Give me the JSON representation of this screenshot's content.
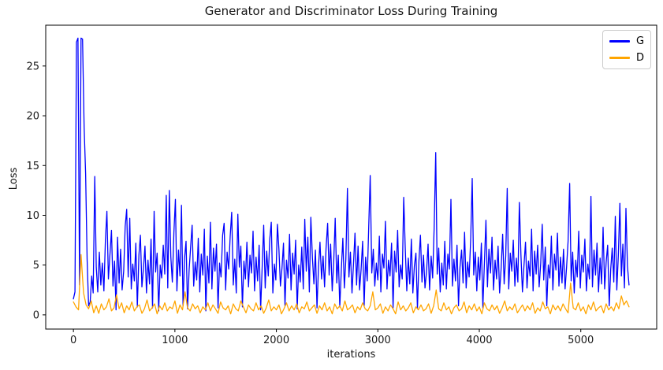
{
  "chart_data": {
    "type": "line",
    "title": "Generator and Discriminator Loss During Training",
    "xlabel": "iterations",
    "ylabel": "Loss",
    "xlim": [
      -273,
      5748
    ],
    "ylim": [
      -1.43,
      29.1
    ],
    "x_ticks": [
      0,
      1000,
      2000,
      3000,
      4000,
      5000
    ],
    "y_ticks": [
      0,
      5,
      10,
      15,
      20,
      25
    ],
    "grid": false,
    "legend_position": "upper right",
    "colors": {
      "generator": "#0000ff",
      "discriminator": "#ffa500",
      "axis": "#000000",
      "background": "#ffffff",
      "legend_border": "#cccccc"
    },
    "series": [
      {
        "name": "G",
        "color": "#0000ff",
        "x0": 0,
        "dx": 15,
        "values": [
          1.6,
          2.3,
          27.4,
          27.8,
          3.0,
          27.8,
          27.7,
          18.9,
          14.2,
          5.6,
          0.9,
          1.3,
          3.9,
          2.2,
          13.9,
          4.8,
          2.3,
          6.3,
          3.0,
          5.2,
          2.4,
          7.5,
          10.4,
          3.6,
          6.1,
          8.5,
          2.9,
          5.4,
          0.5,
          7.8,
          3.2,
          6.6,
          2.5,
          4.4,
          8.9,
          10.6,
          3.8,
          9.7,
          2.6,
          5.1,
          3.4,
          7.2,
          0.8,
          6.0,
          8.0,
          2.8,
          4.7,
          6.9,
          2.2,
          5.5,
          3.1,
          7.6,
          0.7,
          10.4,
          4.3,
          6.2,
          0.4,
          5.0,
          3.7,
          7.0,
          4.1,
          12.0,
          2.7,
          12.5,
          5.8,
          3.3,
          8.3,
          11.6,
          2.4,
          6.5,
          3.9,
          11.0,
          0.9,
          5.7,
          7.4,
          0.6,
          4.5,
          6.8,
          9.0,
          2.9,
          5.3,
          3.5,
          7.7,
          2.3,
          6.1,
          4.0,
          8.6,
          0.4,
          5.9,
          3.2,
          9.3,
          2.6,
          6.7,
          4.4,
          7.1,
          0.7,
          5.2,
          3.8,
          8.0,
          9.2,
          2.5,
          6.3,
          4.6,
          7.9,
          10.3,
          3.0,
          5.6,
          2.2,
          10.1,
          4.8,
          6.9,
          0.8,
          5.4,
          3.6,
          7.3,
          2.8,
          6.0,
          4.2,
          8.4,
          2.4,
          5.8,
          3.4,
          7.0,
          0.5,
          4.9,
          9.0,
          2.7,
          6.4,
          3.9,
          7.6,
          9.3,
          2.2,
          5.1,
          3.5,
          9.1,
          6.6,
          2.9,
          4.7,
          7.2,
          0.9,
          5.5,
          3.7,
          8.1,
          2.5,
          6.2,
          4.1,
          7.5,
          0.6,
          5.0,
          3.3,
          6.8,
          2.6,
          9.6,
          4.4,
          7.8,
          2.3,
          9.8,
          5.7,
          3.1,
          6.5,
          0.7,
          4.8,
          7.3,
          3.6,
          5.9,
          2.8,
          6.7,
          9.2,
          4.0,
          7.1,
          2.4,
          5.3,
          9.7,
          3.2,
          6.0,
          0.8,
          4.6,
          7.7,
          2.7,
          5.6,
          12.7,
          3.8,
          6.3,
          2.2,
          5.1,
          8.2,
          3.0,
          6.9,
          2.5,
          4.5,
          7.4,
          0.9,
          5.8,
          3.4,
          8.8,
          14.0,
          4.2,
          6.6,
          2.9,
          5.2,
          3.5,
          7.9,
          2.3,
          6.1,
          4.7,
          9.4,
          2.6,
          5.5,
          3.9,
          7.2,
          0.7,
          6.4,
          4.3,
          8.5,
          2.8,
          5.0,
          3.6,
          11.8,
          6.8,
          2.4,
          5.7,
          3.1,
          7.6,
          2.2,
          4.9,
          6.2,
          0.6,
          5.4,
          8.0,
          3.3,
          6.0,
          2.7,
          4.4,
          7.1,
          2.5,
          5.9,
          3.7,
          8.7,
          16.3,
          4.1,
          6.7,
          2.3,
          5.2,
          3.0,
          7.4,
          2.6,
          6.1,
          4.6,
          11.6,
          2.9,
          5.6,
          3.4,
          7.0,
          0.9,
          4.8,
          6.5,
          3.2,
          8.3,
          2.7,
          5.3,
          3.8,
          7.7,
          13.7,
          4.0,
          6.3,
          2.4,
          5.8,
          3.5,
          7.2,
          0.7,
          5.1,
          9.5,
          2.8,
          6.6,
          4.2,
          7.8,
          2.5,
          5.5,
          3.6,
          6.9,
          2.2,
          4.7,
          8.1,
          3.1,
          5.9,
          12.7,
          2.6,
          6.2,
          4.4,
          7.5,
          2.9,
          5.7,
          3.3,
          11.3,
          6.0,
          2.3,
          4.9,
          7.3,
          2.7,
          5.4,
          3.9,
          8.6,
          2.4,
          6.4,
          4.1,
          7.0,
          2.8,
          5.2,
          9.1,
          3.5,
          6.8,
          0.9,
          5.0,
          3.7,
          7.9,
          2.5,
          6.1,
          4.5,
          8.2,
          2.9,
          5.8,
          3.2,
          6.6,
          2.6,
          4.8,
          7.4,
          13.2,
          3.4,
          6.3,
          2.2,
          5.5,
          3.8,
          8.4,
          2.7,
          6.0,
          4.3,
          7.6,
          2.4,
          5.1,
          3.6,
          11.9,
          2.8,
          6.5,
          4.0,
          7.2,
          2.3,
          5.7,
          3.1,
          8.8,
          2.6,
          5.3,
          7.0,
          0.9,
          4.6,
          6.7,
          3.3,
          9.9,
          2.5,
          5.9,
          11.2,
          3.9,
          7.1,
          2.7,
          10.7,
          4.9,
          3.0
        ]
      },
      {
        "name": "D",
        "color": "#ffa500",
        "x0": 0,
        "dx": 25,
        "values": [
          1.3,
          0.8,
          0.5,
          6.05,
          2.2,
          1.0,
          0.6,
          1.4,
          0.2,
          0.9,
          0.15,
          1.1,
          0.5,
          0.8,
          1.6,
          0.4,
          0.7,
          2.0,
          0.6,
          1.2,
          0.2,
          0.9,
          0.5,
          1.3,
          0.4,
          0.8,
          1.0,
          0.15,
          0.6,
          1.5,
          0.4,
          0.7,
          1.1,
          0.1,
          0.9,
          0.5,
          1.2,
          0.4,
          0.8,
          0.6,
          1.4,
          0.15,
          1.0,
          0.5,
          2.3,
          0.7,
          0.4,
          1.1,
          0.6,
          0.9,
          0.2,
          0.8,
          0.5,
          1.2,
          0.4,
          1.0,
          0.6,
          0.15,
          1.3,
          0.7,
          0.5,
          0.9,
          0.1,
          1.1,
          0.6,
          0.4,
          1.4,
          0.8,
          0.2,
          1.0,
          0.6,
          0.4,
          1.2,
          0.5,
          0.9,
          0.15,
          0.7,
          1.5,
          0.4,
          0.8,
          0.5,
          1.0,
          0.1,
          0.6,
          1.2,
          0.4,
          0.9,
          0.5,
          1.1,
          0.2,
          0.8,
          0.6,
          1.3,
          0.4,
          0.7,
          1.0,
          0.15,
          0.9,
          0.5,
          1.2,
          0.4,
          0.8,
          0.1,
          1.1,
          0.6,
          0.9,
          0.4,
          1.4,
          0.5,
          0.7,
          1.0,
          0.2,
          0.8,
          0.5,
          1.2,
          0.6,
          0.4,
          0.9,
          2.3,
          0.5,
          0.7,
          1.1,
          0.15,
          0.8,
          0.4,
          1.0,
          0.6,
          0.1,
          1.3,
          0.5,
          0.9,
          0.4,
          0.7,
          1.2,
          0.2,
          0.8,
          0.5,
          1.0,
          0.4,
          0.6,
          1.1,
          0.15,
          0.9,
          2.5,
          0.6,
          0.4,
          1.2,
          0.5,
          0.8,
          0.1,
          0.7,
          1.0,
          0.4,
          0.6,
          1.3,
          0.2,
          0.9,
          0.5,
          1.1,
          0.4,
          0.8,
          0.1,
          1.2,
          0.6,
          0.4,
          1.0,
          0.5,
          0.9,
          0.15,
          0.7,
          1.4,
          0.4,
          0.8,
          0.5,
          1.1,
          0.2,
          0.6,
          1.0,
          0.4,
          0.9,
          0.5,
          1.2,
          0.15,
          0.7,
          0.4,
          1.3,
          0.6,
          0.8,
          0.1,
          1.0,
          0.5,
          0.9,
          0.4,
          1.1,
          0.6,
          0.2,
          3.2,
          0.7,
          0.5,
          1.2,
          0.4,
          0.8,
          0.1,
          1.0,
          0.5,
          1.3,
          0.4,
          0.7,
          0.9,
          0.2,
          1.1,
          0.5,
          0.8,
          0.4,
          1.2,
          0.6,
          1.9,
          1.0,
          1.4,
          0.8
        ]
      }
    ]
  }
}
